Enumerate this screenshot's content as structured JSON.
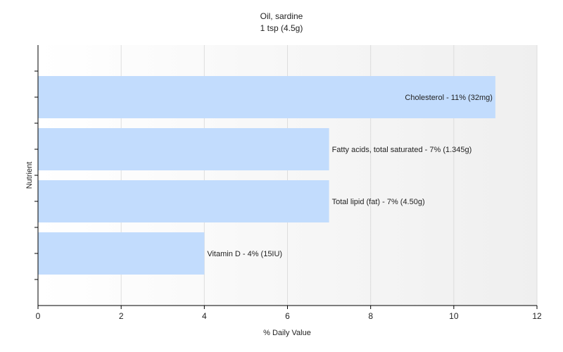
{
  "chart_data": {
    "type": "bar",
    "orientation": "horizontal",
    "title": "Oil, sardine",
    "subtitle": "1 tsp (4.5g)",
    "xlabel": "% Daily Value",
    "ylabel": "Nutrient",
    "xlim": [
      0,
      12
    ],
    "xticks": [
      "0",
      "2",
      "4",
      "6",
      "8",
      "10",
      "12"
    ],
    "grid": true,
    "bar_color": "#c2dcfd",
    "bars": [
      {
        "label": "Cholesterol - 11% (32mg)",
        "value": 11
      },
      {
        "label": "Fatty acids, total saturated - 7% (1.345g)",
        "value": 7
      },
      {
        "label": "Total lipid (fat) - 7% (4.50g)",
        "value": 7
      },
      {
        "label": "Vitamin D - 4% (15IU)",
        "value": 4
      }
    ]
  }
}
